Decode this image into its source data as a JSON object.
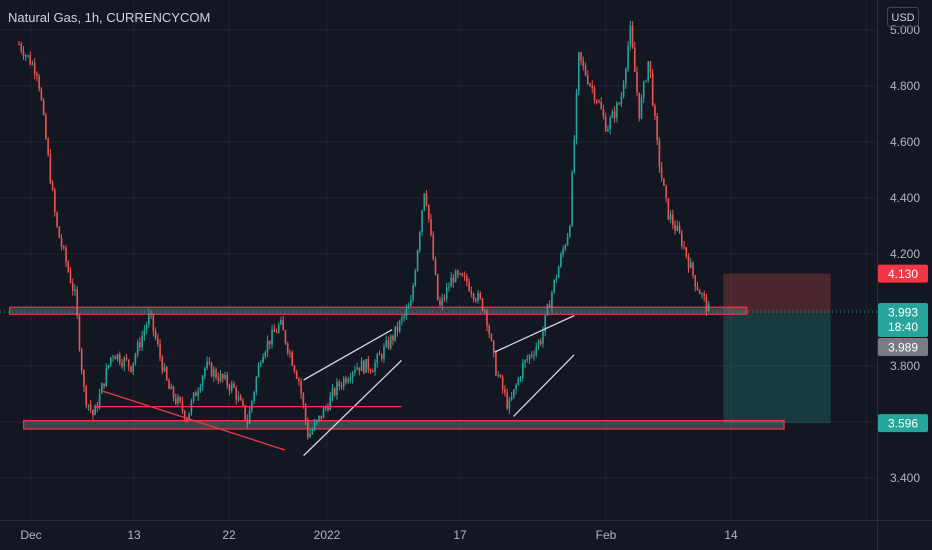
{
  "header": {
    "symbol_title": "Natural Gas, 1h, CURRENCYCOM",
    "currency_button": "USD"
  },
  "colors": {
    "background": "#131722",
    "up": "#26a69a",
    "down": "#ef5350",
    "support_zone": "#f23645",
    "trendline_red": "#f23645",
    "trendline_white": "#d1d4dc",
    "stop_zone": "#ef5350",
    "target_zone": "#26a69a"
  },
  "chart_data": {
    "type": "candlestick",
    "title": "Natural Gas, 1h, CURRENCYCOM",
    "y_axis": {
      "ticks": [
        3.4,
        3.6,
        3.8,
        4.0,
        4.2,
        4.4,
        4.6,
        4.8,
        5.0
      ],
      "tick_labels": [
        "3.400",
        "",
        "3.800",
        "",
        "4.200",
        "4.400",
        "4.600",
        "4.800",
        "5.000"
      ],
      "range": [
        3.2,
        5.05
      ]
    },
    "x_axis": {
      "ticks": [
        "Dec",
        "13",
        "22",
        "2022",
        "17",
        "Feb",
        "14"
      ],
      "range": [
        "Nov 29",
        "Feb 20"
      ]
    },
    "price_path": [
      {
        "t": 0.0,
        "p": 4.95
      },
      {
        "t": 2.0,
        "p": 4.85
      },
      {
        "t": 4.0,
        "p": 4.3
      },
      {
        "t": 6.0,
        "p": 4.05
      },
      {
        "t": 7.0,
        "p": 3.7
      },
      {
        "t": 8.0,
        "p": 3.62
      },
      {
        "t": 10.0,
        "p": 3.85
      },
      {
        "t": 12.0,
        "p": 3.8
      },
      {
        "t": 14.0,
        "p": 3.98
      },
      {
        "t": 16.0,
        "p": 3.72
      },
      {
        "t": 18.0,
        "p": 3.62
      },
      {
        "t": 20.0,
        "p": 3.8
      },
      {
        "t": 23.0,
        "p": 3.72
      },
      {
        "t": 24.5,
        "p": 3.6
      },
      {
        "t": 26.0,
        "p": 3.85
      },
      {
        "t": 28.0,
        "p": 3.95
      },
      {
        "t": 30.0,
        "p": 3.75
      },
      {
        "t": 31.0,
        "p": 3.55
      },
      {
        "t": 32.0,
        "p": 3.6
      },
      {
        "t": 34.0,
        "p": 3.72
      },
      {
        "t": 36.0,
        "p": 3.8
      },
      {
        "t": 38.0,
        "p": 3.8
      },
      {
        "t": 40.0,
        "p": 3.9
      },
      {
        "t": 42.0,
        "p": 4.02
      },
      {
        "t": 43.5,
        "p": 4.45
      },
      {
        "t": 45.0,
        "p": 4.0
      },
      {
        "t": 46.5,
        "p": 4.12
      },
      {
        "t": 48.0,
        "p": 4.1
      },
      {
        "t": 50.0,
        "p": 4.0
      },
      {
        "t": 51.0,
        "p": 3.8
      },
      {
        "t": 52.5,
        "p": 3.65
      },
      {
        "t": 54.0,
        "p": 3.8
      },
      {
        "t": 56.0,
        "p": 3.9
      },
      {
        "t": 57.0,
        "p": 4.05
      },
      {
        "t": 59.0,
        "p": 4.3
      },
      {
        "t": 60.0,
        "p": 4.9
      },
      {
        "t": 62.0,
        "p": 4.75
      },
      {
        "t": 63.0,
        "p": 4.65
      },
      {
        "t": 64.5,
        "p": 4.75
      },
      {
        "t": 65.5,
        "p": 5.0
      },
      {
        "t": 66.5,
        "p": 4.7
      },
      {
        "t": 67.5,
        "p": 4.9
      },
      {
        "t": 68.5,
        "p": 4.55
      },
      {
        "t": 69.5,
        "p": 4.35
      },
      {
        "t": 71.0,
        "p": 4.25
      },
      {
        "t": 72.5,
        "p": 4.1
      },
      {
        "t": 74.0,
        "p": 3.993
      }
    ],
    "support_zone": {
      "y_bottom": 3.575,
      "y_top": 3.605,
      "x_start": 0.5,
      "x_end": 82
    },
    "resistance_zone": {
      "y_bottom": 3.985,
      "y_top": 4.01,
      "x_start": -1,
      "x_end": 78
    },
    "trendlines": [
      {
        "color": "red",
        "points": [
          [
            9,
            3.71
          ],
          [
            28.5,
            3.5
          ]
        ]
      },
      {
        "color": "white",
        "points": [
          [
            30.5,
            3.75
          ],
          [
            40,
            3.93
          ]
        ]
      },
      {
        "color": "white",
        "points": [
          [
            30.5,
            3.48
          ],
          [
            41,
            3.82
          ]
        ]
      },
      {
        "color": "red",
        "points": [
          [
            8,
            3.655
          ],
          [
            41,
            3.655
          ]
        ]
      },
      {
        "color": "white",
        "points": [
          [
            51,
            3.85
          ],
          [
            59.5,
            3.98
          ]
        ]
      },
      {
        "color": "white",
        "points": [
          [
            53,
            3.62
          ],
          [
            59.5,
            3.84
          ]
        ]
      }
    ],
    "position": {
      "entry": 3.989,
      "stop": 4.13,
      "target": 3.596,
      "x_start": 75.5,
      "x_end": 87
    },
    "price_labels": {
      "stop": "4.130",
      "current": "3.993",
      "countdown": "18:40",
      "entry": "3.989",
      "target": "3.596"
    }
  }
}
